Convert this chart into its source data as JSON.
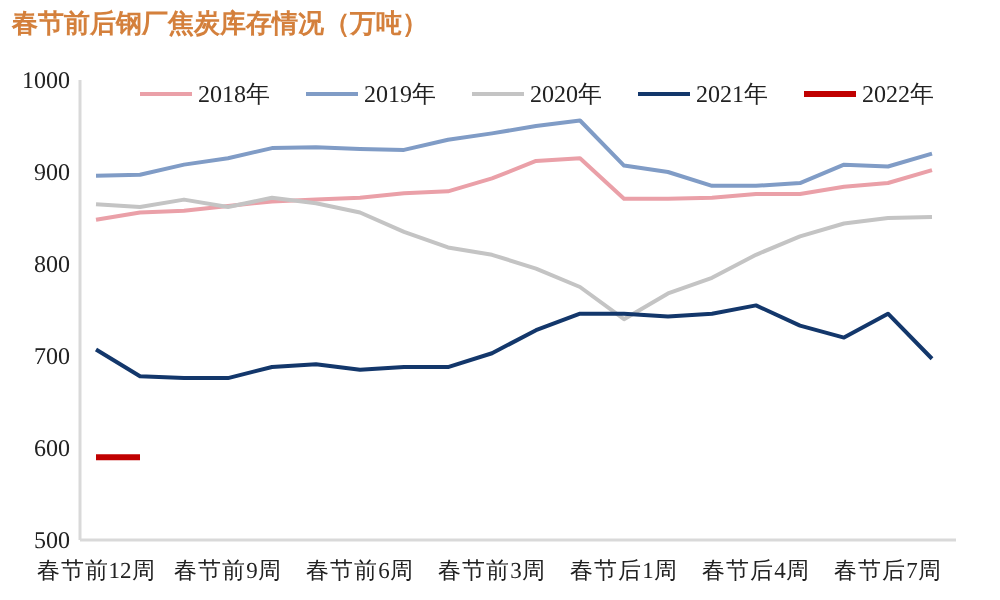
{
  "chart_data": {
    "type": "line",
    "title": "春节前后钢厂焦炭库存情况（万吨）",
    "categories": [
      "春节前12周",
      null,
      null,
      "春节前9周",
      null,
      null,
      "春节前6周",
      null,
      null,
      "春节前3周",
      null,
      null,
      "春节后1周",
      null,
      null,
      "春节后4周",
      null,
      null,
      "春节后7周",
      null
    ],
    "series": [
      {
        "name": "2018年",
        "color": "#eaa0a8",
        "values": [
          848,
          856,
          858,
          863,
          868,
          870,
          872,
          877,
          879,
          893,
          912,
          915,
          871,
          871,
          872,
          876,
          876,
          884,
          888,
          902
        ]
      },
      {
        "name": "2019年",
        "color": "#809cc6",
        "values": [
          896,
          897,
          908,
          915,
          926,
          927,
          925,
          924,
          935,
          942,
          950,
          956,
          907,
          900,
          885,
          885,
          888,
          908,
          906,
          920
        ]
      },
      {
        "name": "2020年",
        "color": "#c4c4c4",
        "values": [
          865,
          862,
          870,
          862,
          872,
          866,
          856,
          835,
          818,
          810,
          795,
          775,
          740,
          768,
          785,
          810,
          830,
          844,
          850,
          851
        ]
      },
      {
        "name": "2021年",
        "color": "#13376b",
        "values": [
          707,
          678,
          676,
          676,
          688,
          691,
          685,
          688,
          688,
          703,
          728,
          746,
          746,
          743,
          746,
          755,
          733,
          720,
          746,
          697
        ]
      },
      {
        "name": "2022年",
        "color": "#c00000",
        "values": [
          590,
          590,
          null,
          null,
          null,
          null,
          null,
          null,
          null,
          null,
          null,
          null,
          null,
          null,
          null,
          null,
          null,
          null,
          null,
          null
        ]
      }
    ],
    "ylim": [
      500,
      1000
    ],
    "yticks": [
      500,
      600,
      700,
      800,
      900,
      1000
    ],
    "legend": "top",
    "grid": false,
    "marker": "none",
    "line_style": "solid"
  }
}
